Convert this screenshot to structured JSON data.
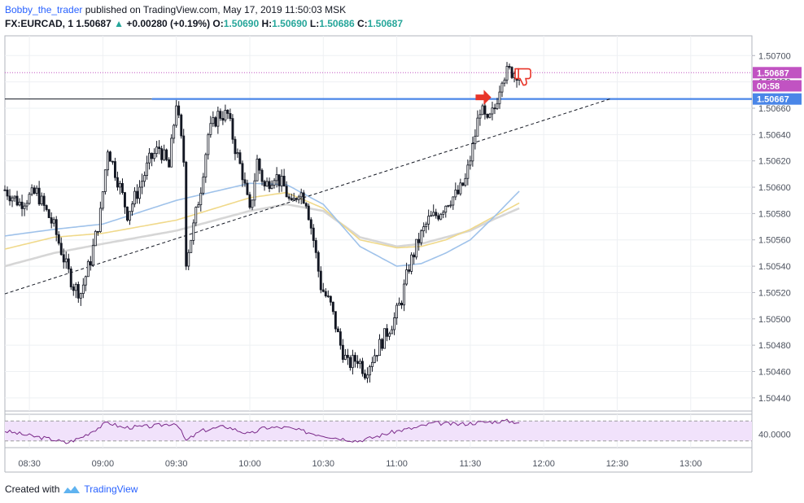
{
  "header": {
    "author": "Bobby_the_trader",
    "published": "published on TradingView.com, May 17, 2019 11:50:03 MSK",
    "symbol": "FX:EURCAD, 1",
    "last": "1.50687",
    "arrow": "▲",
    "change": "+0.00280 (+0.19%)",
    "o_label": "O:",
    "o_value": "1.50690",
    "h_label": "H:",
    "h_value": "1.50690",
    "l_label": "L:",
    "l_value": "1.50686",
    "c_label": "C:",
    "c_value": "1.50687"
  },
  "footer": {
    "created": "Created with",
    "brand": "TradingView",
    "logo_icon": "tradingview-logo-icon"
  },
  "chart_data": {
    "type": "candlestick",
    "instrument": "FX:EURCAD",
    "interval": "1",
    "price_ticks": [
      "1.50700",
      "1.50680",
      "1.50660",
      "1.50640",
      "1.50620",
      "1.50600",
      "1.50580",
      "1.50560",
      "1.50540",
      "1.50520",
      "1.50500",
      "1.50480",
      "1.50460",
      "1.50440"
    ],
    "ylim": [
      1.5043,
      1.50715
    ],
    "time_ticks": [
      "08:30",
      "09:00",
      "09:30",
      "10:00",
      "10:30",
      "11:00",
      "11:30",
      "12:00",
      "12:30",
      "13:00"
    ],
    "xlim_minutes_from_0820": [
      0,
      305
    ],
    "price_labels": [
      {
        "text": "1.50687",
        "value": 1.50687,
        "color": "#c153c2"
      },
      {
        "text": "00:58",
        "value": 1.50677,
        "color": "#c153c2"
      },
      {
        "text": "1.50667",
        "value": 1.50667,
        "color": "#4a86e8"
      }
    ],
    "resistance_level": 1.50667,
    "trendline": {
      "from": [
        "08:20",
        1.50519
      ],
      "to": [
        "12:27",
        1.50667
      ],
      "style": "dashed"
    },
    "close_path_keypoints": [
      [
        "08:20",
        1.50598
      ],
      [
        "08:26",
        1.50588
      ],
      [
        "08:33",
        1.50596
      ],
      [
        "08:40",
        1.5057
      ],
      [
        "08:45",
        1.5054
      ],
      [
        "08:48",
        1.50525
      ],
      [
        "08:51",
        1.5052
      ],
      [
        "08:55",
        1.50545
      ],
      [
        "08:59",
        1.5058
      ],
      [
        "09:02",
        1.5063
      ],
      [
        "09:07",
        1.506
      ],
      [
        "09:10",
        1.5058
      ],
      [
        "09:15",
        1.506
      ],
      [
        "09:19",
        1.5062
      ],
      [
        "09:23",
        1.5063
      ],
      [
        "09:27",
        1.50615
      ],
      [
        "09:30",
        1.50665
      ],
      [
        "09:33",
        1.5062
      ],
      [
        "09:34",
        1.50545
      ],
      [
        "09:37",
        1.5057
      ],
      [
        "09:40",
        1.506
      ],
      [
        "09:43",
        1.5064
      ],
      [
        "09:47",
        1.50655
      ],
      [
        "09:51",
        1.50655
      ],
      [
        "09:54",
        1.5063
      ],
      [
        "09:57",
        1.5061
      ],
      [
        "10:00",
        1.5058
      ],
      [
        "10:03",
        1.5062
      ],
      [
        "10:06",
        1.506
      ],
      [
        "10:10",
        1.5061
      ],
      [
        "10:14",
        1.506
      ],
      [
        "10:17",
        1.50585
      ],
      [
        "10:20",
        1.50598
      ],
      [
        "10:23",
        1.5059
      ],
      [
        "10:26",
        1.5056
      ],
      [
        "10:29",
        1.50525
      ],
      [
        "10:33",
        1.5051
      ],
      [
        "10:37",
        1.5048
      ],
      [
        "10:40",
        1.50465
      ],
      [
        "10:44",
        1.5047
      ],
      [
        "10:47",
        1.5046
      ],
      [
        "10:50",
        1.5047
      ],
      [
        "10:53",
        1.5048
      ],
      [
        "10:56",
        1.5049
      ],
      [
        "10:59",
        1.505
      ],
      [
        "11:02",
        1.50515
      ],
      [
        "11:05",
        1.5054
      ],
      [
        "11:09",
        1.5056
      ],
      [
        "11:13",
        1.50575
      ],
      [
        "11:17",
        1.5058
      ],
      [
        "11:21",
        1.5059
      ],
      [
        "11:25",
        1.50595
      ],
      [
        "11:28",
        1.50605
      ],
      [
        "11:31",
        1.5063
      ],
      [
        "11:34",
        1.5066
      ],
      [
        "11:37",
        1.50648
      ],
      [
        "11:40",
        1.5066
      ],
      [
        "11:43",
        1.50685
      ],
      [
        "11:46",
        1.50688
      ],
      [
        "11:50",
        1.50687
      ]
    ],
    "ma_blue_keypoints": [
      [
        "08:20",
        1.50563
      ],
      [
        "08:40",
        1.50568
      ],
      [
        "09:00",
        1.50572
      ],
      [
        "09:30",
        1.5059
      ],
      [
        "10:00",
        1.50603
      ],
      [
        "10:15",
        1.50602
      ],
      [
        "10:30",
        1.50587
      ],
      [
        "10:45",
        1.50555
      ],
      [
        "11:00",
        1.5054
      ],
      [
        "11:10",
        1.50542
      ],
      [
        "11:20",
        1.5055
      ],
      [
        "11:30",
        1.5056
      ],
      [
        "11:40",
        1.50578
      ],
      [
        "11:50",
        1.50597
      ]
    ],
    "ma_yellow_keypoints": [
      [
        "08:20",
        1.50553
      ],
      [
        "08:40",
        1.50562
      ],
      [
        "09:00",
        1.50565
      ],
      [
        "09:30",
        1.50575
      ],
      [
        "10:00",
        1.50592
      ],
      [
        "10:15",
        1.50596
      ],
      [
        "10:30",
        1.50584
      ],
      [
        "10:45",
        1.5056
      ],
      [
        "11:00",
        1.50554
      ],
      [
        "11:10",
        1.50555
      ],
      [
        "11:20",
        1.5056
      ],
      [
        "11:30",
        1.50568
      ],
      [
        "11:40",
        1.50578
      ],
      [
        "11:50",
        1.50588
      ]
    ],
    "ma_gray_keypoints": [
      [
        "08:20",
        1.5054
      ],
      [
        "08:40",
        1.5055
      ],
      [
        "09:00",
        1.50557
      ],
      [
        "09:30",
        1.50567
      ],
      [
        "10:00",
        1.50582
      ],
      [
        "10:15",
        1.50587
      ],
      [
        "10:30",
        1.50582
      ],
      [
        "10:45",
        1.50562
      ],
      [
        "11:00",
        1.50555
      ],
      [
        "11:10",
        1.50557
      ],
      [
        "11:20",
        1.50562
      ],
      [
        "11:30",
        1.50567
      ],
      [
        "11:40",
        1.50576
      ],
      [
        "11:50",
        1.50584
      ]
    ],
    "oscillator": {
      "label": "40.0000",
      "band_upper": 60,
      "band_lower": 30,
      "level": 40,
      "keypoints": [
        [
          "08:20",
          45
        ],
        [
          "08:30",
          38
        ],
        [
          "08:40",
          32
        ],
        [
          "08:45",
          27
        ],
        [
          "08:51",
          35
        ],
        [
          "09:02",
          58
        ],
        [
          "09:08",
          50
        ],
        [
          "09:20",
          52
        ],
        [
          "09:30",
          57
        ],
        [
          "09:34",
          30
        ],
        [
          "09:40",
          45
        ],
        [
          "09:50",
          52
        ],
        [
          "10:00",
          40
        ],
        [
          "10:06",
          50
        ],
        [
          "10:15",
          50
        ],
        [
          "10:25",
          42
        ],
        [
          "10:35",
          35
        ],
        [
          "10:44",
          30
        ],
        [
          "10:50",
          35
        ],
        [
          "11:00",
          45
        ],
        [
          "11:08",
          50
        ],
        [
          "11:15",
          57
        ],
        [
          "11:25",
          55
        ],
        [
          "11:35",
          58
        ],
        [
          "11:45",
          60
        ],
        [
          "11:50",
          58
        ]
      ]
    }
  }
}
